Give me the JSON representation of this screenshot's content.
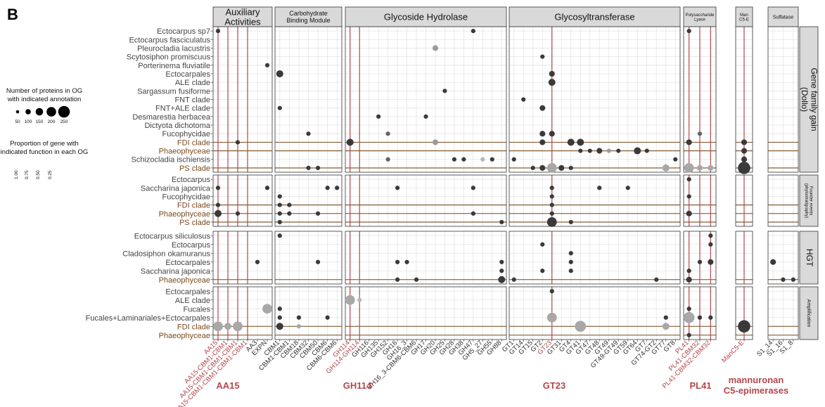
{
  "chart_data": {
    "type": "scatter",
    "panel_label": "B",
    "size_legend": {
      "title_lines": [
        "Number of proteins in OG",
        "with indicated annotation"
      ],
      "values": [
        50,
        100,
        150,
        200,
        250
      ]
    },
    "shade_legend": {
      "title_lines": [
        "Proportion of gene with",
        "indicated function in each OG"
      ],
      "values": [
        "1.00",
        "0.75",
        "0.50",
        "0.25"
      ]
    },
    "groups": [
      {
        "title": [
          "Auxiliary",
          "Activities"
        ],
        "title_size": 13,
        "categories": [
          "AA15",
          "AA15-CBM1-CBM1",
          "AA15-CBM1-CBM1-CBM1",
          "AA15-CBM1-CBM1-CBM1-CBM1",
          "AA3",
          "EXPN"
        ],
        "red": [
          0,
          1,
          2,
          3
        ]
      },
      {
        "title": [
          "Carbohydrate",
          "Binding Module"
        ],
        "title_size": 9,
        "categories": [
          "CBM1",
          "CBM1-CBM1",
          "CBM18",
          "CBM32",
          "CBM50",
          "CBM6",
          "CBM6-CBM6"
        ],
        "red": []
      },
      {
        "title": [
          "Glycoside Hydrolase"
        ],
        "title_size": 13,
        "categories": [
          "GH114",
          "GH114-GH114",
          "GH116",
          "GH135",
          "GH152",
          "GH16",
          "GH16_3",
          "GH16_3-CBM6-CBM6",
          "GH17",
          "GH20",
          "GH25",
          "GH28",
          "GH38",
          "GH47",
          "GH5_27",
          "GH55",
          "GH88"
        ],
        "red": [
          0,
          1
        ]
      },
      {
        "title": [
          "Glycosyltransferase"
        ],
        "title_size": 13,
        "categories": [
          "GT1",
          "GT14",
          "GT15",
          "GT2",
          "GT23",
          "GT31",
          "GT4",
          "GT41",
          "GT47",
          "GT48",
          "GT49",
          "GT49-GT49",
          "GT59",
          "GT64",
          "GT7",
          "GT74-GT2",
          "GT77",
          "GT8"
        ],
        "red": [
          4
        ]
      },
      {
        "title": [
          "Polysaccharide",
          "Lyase"
        ],
        "title_size": 6,
        "categories": [
          "PL41",
          "PL41-CBM32",
          "PL41-CBM32-CBM32"
        ],
        "red": [
          0,
          1,
          2
        ]
      },
      {
        "title": [
          "Man",
          "C5-E"
        ],
        "title_size": 6,
        "categories": [
          "ManC5-E"
        ],
        "red": [
          0
        ]
      },
      {
        "title": [
          "Sulfatase"
        ],
        "title_size": 7,
        "categories": [
          "S1_14",
          "S1_16",
          "S1_8"
        ],
        "red": []
      }
    ],
    "facets": [
      {
        "label": [
          "Gene family gain",
          "(Dollo)"
        ],
        "label_size": 12,
        "rows": [
          "Ectocarpus sp7",
          "Ectocarpus fasciculatus",
          "Pleurocladia lacustris",
          "Scytosiphon promiscuus",
          "Porterinema fluviatile",
          "Ectocarpales",
          "ALE clade",
          "Sargassum fusiforme",
          "FNT clade",
          "FNT+ALE clade",
          "Desmarestia herbacea",
          "Dictyota dichotoma",
          "Fucophycidae",
          "FDI clade",
          "Phaeophyceae",
          "Schizocladia ischiensis",
          "PS clade"
        ],
        "brown_rows": [
          "FDI clade",
          "Phaeophyceae",
          "PS clade"
        ]
      },
      {
        "label": [
          "Founder events",
          "(phylostratigraphy)"
        ],
        "label_size": 6,
        "rows": [
          "Ectocarpus",
          "Saccharina japonica",
          "Fucophycidae",
          "FDI clade",
          "Phaeophyceae",
          "PS clade"
        ],
        "brown_rows": [
          "FDI clade",
          "Phaeophyceae",
          "PS clade"
        ]
      },
      {
        "label": [
          "HGT"
        ],
        "label_size": 12,
        "rows": [
          "Ectocarpus siliculosus",
          "Ectocarpus",
          "Cladosiphon okamuranus",
          "Ectocarpales",
          "Saccharina japonica",
          "Phaeophyceae"
        ],
        "brown_rows": [
          "Phaeophyceae"
        ]
      },
      {
        "label": [
          "Amplification"
        ],
        "label_size": 7,
        "rows": [
          "Ectocarpales",
          "ALE clade",
          "Fucales",
          "Fucales+Laminariales+Ectocarpales",
          "FDI clade",
          "Phaeophyceae"
        ],
        "brown_rows": [
          "FDI clade",
          "Phaeophyceae"
        ]
      }
    ],
    "points": [
      [
        0,
        0,
        0,
        "AA15",
        1,
        1.0
      ],
      [
        0,
        13,
        0,
        "AA15-CBM1-CBM1-CBM1",
        1,
        1.0
      ],
      [
        0,
        4,
        0,
        "EXPN",
        1,
        1.0
      ],
      [
        0,
        5,
        1,
        "CBM1",
        2,
        1.0
      ],
      [
        0,
        9,
        1,
        "CBM1",
        1,
        1.0
      ],
      [
        0,
        12,
        1,
        "CBM32",
        1,
        1.0
      ],
      [
        0,
        16,
        1,
        "CBM32",
        1,
        1.0
      ],
      [
        0,
        16,
        1,
        "CBM50",
        1,
        1.0
      ],
      [
        0,
        13,
        2,
        "GH114",
        2,
        1.0
      ],
      [
        0,
        10,
        2,
        "GH135",
        1,
        1.0
      ],
      [
        0,
        12,
        2,
        "GH152",
        1,
        0.7
      ],
      [
        0,
        15,
        2,
        "GH152",
        1,
        0.7
      ],
      [
        0,
        13,
        2,
        "GH20",
        1.5,
        0.3
      ],
      [
        0,
        2,
        2,
        "GH20",
        1.5,
        0.3
      ],
      [
        0,
        10,
        2,
        "GH17",
        1,
        1.0
      ],
      [
        0,
        0,
        2,
        "GH47",
        1,
        1.0
      ],
      [
        0,
        7,
        2,
        "GH25",
        1,
        1.0
      ],
      [
        0,
        15,
        2,
        "GH28",
        1,
        1.0
      ],
      [
        0,
        15,
        2,
        "GH38",
        1,
        1.0
      ],
      [
        0,
        15,
        2,
        "GH5_27",
        1,
        0.1
      ],
      [
        0,
        15,
        2,
        "GH55",
        1,
        1.0
      ],
      [
        0,
        8,
        3,
        "GT14",
        1,
        1.0
      ],
      [
        0,
        3,
        3,
        "GT2",
        1,
        1.0
      ],
      [
        0,
        9,
        3,
        "GT2",
        1.5,
        1.0
      ],
      [
        0,
        12,
        3,
        "GT2",
        1.5,
        1.0
      ],
      [
        0,
        13,
        3,
        "GT2",
        1.5,
        1.0
      ],
      [
        0,
        5,
        3,
        "GT23",
        1.5,
        1.0
      ],
      [
        0,
        6,
        3,
        "GT23",
        2,
        1.0
      ],
      [
        0,
        12,
        3,
        "GT23",
        1.5,
        1.0
      ],
      [
        0,
        16,
        3,
        "GT15",
        1,
        1.0
      ],
      [
        0,
        16,
        3,
        "GT2",
        1.5,
        1.0
      ],
      [
        0,
        16,
        3,
        "GT23",
        3,
        0.2
      ],
      [
        0,
        16,
        3,
        "GT31",
        1.5,
        1.0
      ],
      [
        0,
        16,
        3,
        "GT4",
        1,
        1.0
      ],
      [
        0,
        13,
        3,
        "GT4",
        2,
        1.0
      ],
      [
        0,
        13,
        3,
        "GT41",
        2,
        1.0
      ],
      [
        0,
        14,
        3,
        "GT41",
        1,
        1.0
      ],
      [
        0,
        14,
        3,
        "GT47",
        1,
        1.0
      ],
      [
        0,
        14,
        3,
        "GT48",
        1.5,
        1.0
      ],
      [
        0,
        14,
        3,
        "GT49",
        1,
        0.3
      ],
      [
        0,
        14,
        3,
        "GT49-GT49",
        1,
        1.0
      ],
      [
        0,
        14,
        3,
        "GT64",
        2,
        1.0
      ],
      [
        0,
        14,
        3,
        "GT7",
        1,
        1.0
      ],
      [
        0,
        16,
        3,
        "GT77",
        2,
        0.2
      ],
      [
        0,
        15,
        3,
        "GT8",
        1,
        1.0
      ],
      [
        0,
        15,
        3,
        "GT1",
        1,
        1.0
      ],
      [
        0,
        0,
        4,
        "PL41",
        1,
        1.0
      ],
      [
        0,
        13,
        4,
        "PL41",
        1.5,
        1.0
      ],
      [
        0,
        16,
        4,
        "PL41",
        3,
        0.2
      ],
      [
        0,
        16,
        4,
        "PL41-CBM32",
        1.5,
        0.2
      ],
      [
        0,
        16,
        4,
        "PL41-CBM32-CBM32",
        1.5,
        0.2
      ],
      [
        0,
        12,
        4,
        "PL41-CBM32",
        1,
        0.7
      ],
      [
        0,
        13,
        5,
        "ManC5-E",
        1.5,
        1.0
      ],
      [
        0,
        14,
        5,
        "ManC5-E",
        1.5,
        1.0
      ],
      [
        0,
        15,
        5,
        "ManC5-E",
        1.5,
        1.0
      ],
      [
        0,
        16,
        5,
        "ManC5-E",
        4,
        1.0
      ],
      [
        1,
        1,
        0,
        "AA15",
        1,
        1.0
      ],
      [
        1,
        3,
        0,
        "AA15",
        1,
        1.0
      ],
      [
        1,
        4,
        0,
        "AA15",
        2,
        1.0
      ],
      [
        1,
        4,
        0,
        "AA15-CBM1-CBM1-CBM1",
        1,
        1.0
      ],
      [
        1,
        1,
        0,
        "EXPN",
        1,
        1.0
      ],
      [
        1,
        2,
        1,
        "CBM1",
        1,
        1.0
      ],
      [
        1,
        3,
        1,
        "CBM1",
        1,
        1.0
      ],
      [
        1,
        3,
        1,
        "CBM1-CBM1",
        1,
        1.0
      ],
      [
        1,
        4,
        1,
        "CBM1",
        1,
        1.0
      ],
      [
        1,
        4,
        1,
        "CBM1-CBM1",
        1,
        1.0
      ],
      [
        1,
        5,
        1,
        "CBM1",
        1,
        1.0
      ],
      [
        1,
        4,
        1,
        "CBM50",
        1,
        1.0
      ],
      [
        1,
        1,
        1,
        "CBM6",
        1,
        1.0
      ],
      [
        1,
        1,
        1,
        "CBM6-CBM6",
        1,
        1.0
      ],
      [
        1,
        1,
        2,
        "GH16",
        1,
        1.0
      ],
      [
        1,
        1,
        2,
        "GH47",
        1,
        1.0
      ],
      [
        1,
        4,
        2,
        "GH47",
        1,
        1.0
      ],
      [
        1,
        5,
        2,
        "GH88",
        1,
        1.0
      ],
      [
        1,
        1,
        3,
        "GT23",
        1,
        1.0
      ],
      [
        1,
        2,
        3,
        "GT23",
        1,
        1.0
      ],
      [
        1,
        3,
        3,
        "GT23",
        1,
        1.0
      ],
      [
        1,
        4,
        3,
        "GT23",
        1,
        1.0
      ],
      [
        1,
        5,
        3,
        "GT23",
        3,
        1.0
      ],
      [
        1,
        5,
        3,
        "GT4",
        1,
        1.0
      ],
      [
        1,
        1,
        3,
        "GT48",
        1,
        1.0
      ],
      [
        1,
        1,
        3,
        "GT59",
        1,
        1.0
      ],
      [
        1,
        0,
        4,
        "PL41",
        1,
        1.0
      ],
      [
        1,
        2,
        4,
        "PL41",
        1,
        1.0
      ],
      [
        1,
        4,
        4,
        "PL41",
        1.5,
        1.0
      ],
      [
        2,
        0,
        1,
        "CBM1",
        1,
        1.0
      ],
      [
        2,
        3,
        0,
        "AA3",
        1,
        1.0
      ],
      [
        2,
        3,
        1,
        "CBM50",
        1,
        1.0
      ],
      [
        2,
        3,
        2,
        "GH16",
        1,
        1.0
      ],
      [
        2,
        3,
        2,
        "GH16_3",
        1,
        1.0
      ],
      [
        2,
        4,
        2,
        "GH88",
        1,
        1.0
      ],
      [
        2,
        3,
        2,
        "GH88",
        1,
        1.0
      ],
      [
        2,
        5,
        2,
        "GH88",
        2,
        1.0
      ],
      [
        2,
        5,
        2,
        "GH16",
        1,
        1.0
      ],
      [
        2,
        5,
        2,
        "GH16_3-CBM6-CBM6",
        1,
        1.0
      ],
      [
        2,
        1,
        3,
        "GT2",
        1,
        1.0
      ],
      [
        2,
        2,
        3,
        "GT4",
        1,
        1.0
      ],
      [
        2,
        3,
        3,
        "GT4",
        1,
        1.0
      ],
      [
        2,
        4,
        3,
        "GT4",
        1,
        1.0
      ],
      [
        2,
        4,
        3,
        "GT2",
        1,
        1.0
      ],
      [
        2,
        5,
        3,
        "GT1",
        1,
        1.0
      ],
      [
        2,
        5,
        3,
        "GT74-GT2",
        1,
        1.0
      ],
      [
        2,
        0,
        4,
        "PL41-CBM32-CBM32",
        1,
        1.0
      ],
      [
        2,
        1,
        4,
        "PL41-CBM32-CBM32",
        1,
        1.0
      ],
      [
        2,
        3,
        4,
        "PL41-CBM32",
        1,
        1.0
      ],
      [
        2,
        3,
        4,
        "PL41-CBM32-CBM32",
        1.5,
        1.0
      ],
      [
        2,
        4,
        4,
        "PL41",
        1,
        1.0
      ],
      [
        2,
        5,
        4,
        "PL41",
        1.5,
        1.0
      ],
      [
        2,
        3,
        6,
        "S1_14",
        1.5,
        1.0
      ],
      [
        2,
        5,
        6,
        "S1_16",
        1,
        1.0
      ],
      [
        2,
        5,
        6,
        "S1_8",
        1,
        1.0
      ],
      [
        3,
        2,
        0,
        "EXPN",
        3,
        0.2
      ],
      [
        3,
        4,
        0,
        "AA15",
        3,
        0.2
      ],
      [
        3,
        4,
        0,
        "AA15-CBM1-CBM1",
        2,
        0.2
      ],
      [
        3,
        4,
        0,
        "AA15-CBM1-CBM1-CBM1",
        3,
        0.2
      ],
      [
        3,
        2,
        1,
        "CBM1",
        1,
        1.0
      ],
      [
        3,
        3,
        1,
        "CBM1",
        1,
        1.0
      ],
      [
        3,
        3,
        1,
        "CBM18",
        1,
        1.0
      ],
      [
        3,
        3,
        1,
        "CBM6",
        1,
        1.0
      ],
      [
        3,
        4,
        1,
        "CBM1",
        2,
        1.0
      ],
      [
        3,
        4,
        1,
        "CBM18",
        1,
        0.2
      ],
      [
        3,
        1,
        2,
        "GH114",
        3,
        0.2
      ],
      [
        3,
        1,
        2,
        "GH114-GH114",
        1,
        0.1
      ],
      [
        3,
        0,
        3,
        "GT23",
        1,
        1.0
      ],
      [
        3,
        3,
        3,
        "GT23",
        3,
        0.2
      ],
      [
        3,
        4,
        3,
        "GT41",
        3.5,
        0.2
      ],
      [
        3,
        3,
        3,
        "GT77",
        1,
        1.0
      ],
      [
        3,
        4,
        3,
        "GT77",
        2,
        0.2
      ],
      [
        3,
        2,
        4,
        "PL41",
        1,
        1.0
      ],
      [
        3,
        3,
        4,
        "PL41",
        3.5,
        0.2
      ],
      [
        3,
        3,
        4,
        "PL41-CBM32",
        1,
        1.0
      ],
      [
        3,
        3,
        4,
        "PL41-CBM32-CBM32",
        1,
        1.0
      ],
      [
        3,
        5,
        4,
        "PL41",
        1,
        1.0
      ],
      [
        3,
        4,
        5,
        "ManC5-E",
        4,
        1.0
      ]
    ],
    "highlight_labels": [
      {
        "group": 0,
        "label": "AA15"
      },
      {
        "group": 2,
        "label": "GH114"
      },
      {
        "group": 3,
        "label": "GT23"
      },
      {
        "group": 4,
        "label": "PL41"
      },
      {
        "group": 5,
        "label": "mannuronan\nC5-epimerases"
      }
    ],
    "colors": {
      "highlight_red": "#b4474c",
      "brown_label": "#7b4a1e",
      "strip_fill": "#d9d9d9",
      "point_dark": "#3a3a3a",
      "point_light": "#c0c0c0",
      "grid": "#e4e4e4"
    }
  }
}
